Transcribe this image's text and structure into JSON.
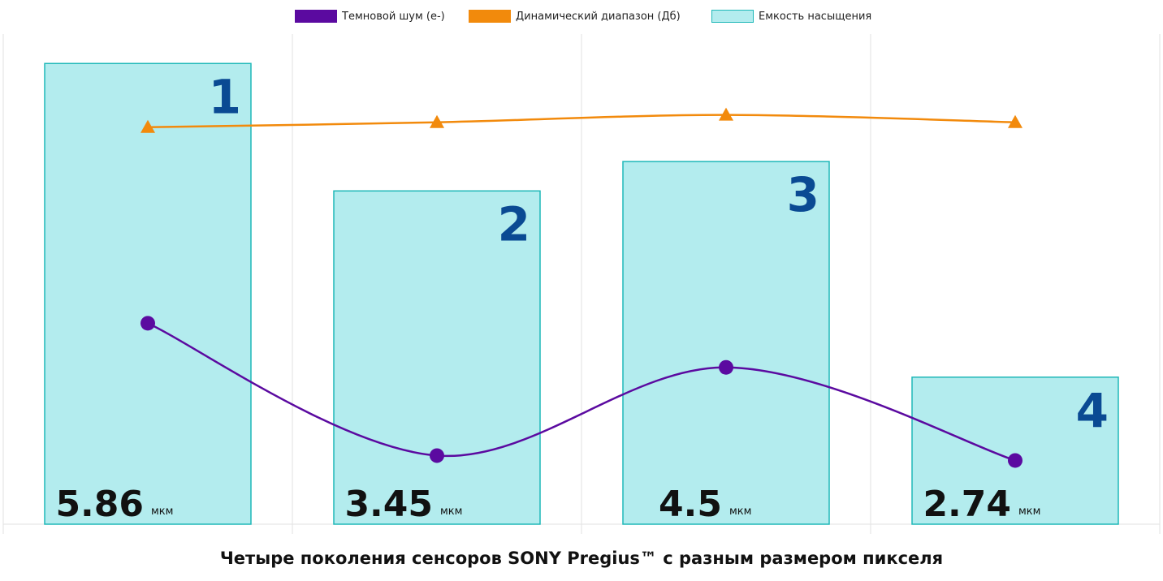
{
  "chart_data": {
    "type": "bar",
    "categories": [
      "1",
      "2",
      "3",
      "4"
    ],
    "caption": "Четыре поколения сенсоров SONY Pregius™ с разным размером пикселя",
    "pixel_sizes": [
      "5.86",
      "3.45",
      "4.5",
      "2.74"
    ],
    "pixel_unit": "мкм",
    "grid": true,
    "legend_position": "top-center",
    "series": [
      {
        "name": "Темновой шум (е-)",
        "type": "line",
        "marker": "circle",
        "color": "#5b0aa0",
        "values": [
          0.41,
          0.14,
          0.32,
          0.13
        ]
      },
      {
        "name": "Динамический диапазон (Дб)",
        "type": "line",
        "marker": "triangle",
        "color": "#f28a0c",
        "values": [
          0.81,
          0.82,
          0.835,
          0.82
        ]
      },
      {
        "name": "Емкость насыщения",
        "type": "bar",
        "color": "#b3ecee",
        "border": "#1fb8b8",
        "values": [
          0.94,
          0.68,
          0.74,
          0.3
        ]
      }
    ],
    "ylim": [
      0,
      1
    ]
  },
  "colors": {
    "badge": "#0a4a93",
    "grid": "#e2e2e2",
    "label": "#111111"
  }
}
